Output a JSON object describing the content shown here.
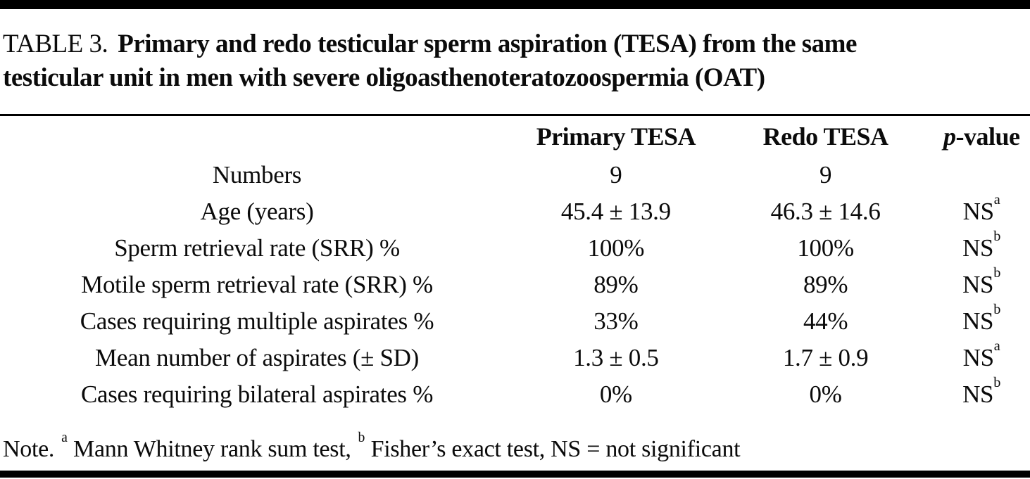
{
  "colors": {
    "background": "#ffffff",
    "text": "#0b0b0b",
    "rules": "#000000"
  },
  "header": {
    "label": "TABLE 3.",
    "title_line1": "Primary and redo testicular sperm aspiration (TESA) from the same",
    "title_line2": "testicular unit in men with severe oligoasthenoteratozoospermia (OAT)"
  },
  "table": {
    "columns": {
      "row_label": "",
      "primary": "Primary TESA",
      "redo": "Redo TESA",
      "p_italic": "p",
      "p_rest": "-value"
    },
    "rows": [
      {
        "label": "Numbers",
        "primary": "9",
        "redo": "9",
        "p_base": "",
        "p_sup": ""
      },
      {
        "label": "Age (years)",
        "primary": "45.4 ± 13.9",
        "redo": "46.3 ± 14.6",
        "p_base": "NS",
        "p_sup": "a"
      },
      {
        "label": "Sperm retrieval rate (SRR) %",
        "primary": "100%",
        "redo": "100%",
        "p_base": "NS",
        "p_sup": "b"
      },
      {
        "label": "Motile sperm retrieval rate (SRR) %",
        "primary": "89%",
        "redo": "89%",
        "p_base": "NS",
        "p_sup": "b"
      },
      {
        "label": "Cases requiring multiple aspirates %",
        "primary": "33%",
        "redo": "44%",
        "p_base": "NS",
        "p_sup": "b"
      },
      {
        "label": "Mean number of aspirates (± SD)",
        "primary": "1.3 ± 0.5",
        "redo": "1.7 ± 0.9",
        "p_base": "NS",
        "p_sup": "a"
      },
      {
        "label": "Cases requiring bilateral aspirates %",
        "primary": "0%",
        "redo": "0%",
        "p_base": "NS",
        "p_sup": "b"
      }
    ]
  },
  "note": {
    "prefix": "Note.",
    "sup_a": "a",
    "text_a": "Mann Whitney rank sum test,",
    "sup_b": "b",
    "text_b": "Fisher’s exact test, NS = not significant"
  }
}
